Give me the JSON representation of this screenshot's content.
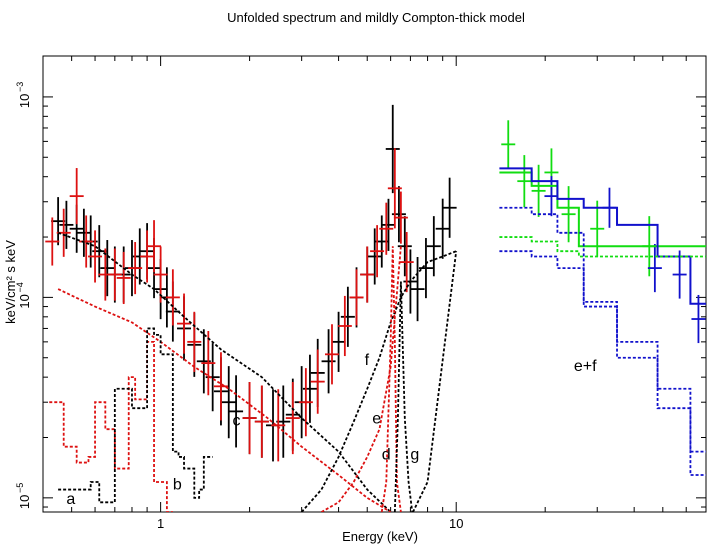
{
  "chart_data": {
    "type": "line",
    "title": "Unfolded spectrum and mildly Compton-thick model",
    "xlabel": "Energy (keV)",
    "ylabel": "keV/cm² s keV",
    "xscale": "log",
    "yscale": "log",
    "xlim": [
      0.4,
      70
    ],
    "ylim": [
      8.5e-06,
      0.0016
    ],
    "xticks": [
      {
        "value": 1,
        "label": "1"
      },
      {
        "value": 10,
        "label": "10"
      }
    ],
    "yticks": [
      {
        "value": 1e-05,
        "base": "10",
        "exp": "−5"
      },
      {
        "value": 0.0001,
        "base": "10",
        "exp": "−4"
      },
      {
        "value": 0.001,
        "base": "10",
        "exp": "−3"
      }
    ],
    "annotations": [
      {
        "text": "a",
        "x": 0.48,
        "y": 9.3e-06
      },
      {
        "text": "b",
        "x": 1.1,
        "y": 1.1e-05
      },
      {
        "text": "c",
        "x": 1.75,
        "y": 2.3e-05
      },
      {
        "text": "d",
        "x": 5.6,
        "y": 1.55e-05
      },
      {
        "text": "g",
        "x": 7.0,
        "y": 1.55e-05
      },
      {
        "text": "e",
        "x": 5.2,
        "y": 2.35e-05
      },
      {
        "text": "f",
        "x": 4.9,
        "y": 4.6e-05
      },
      {
        "text": "e+f",
        "x": 25,
        "y": 4.3e-05
      }
    ],
    "series": [
      {
        "name": "black-data",
        "color": "#000000",
        "style": "errorbar",
        "x": [
          0.45,
          0.48,
          0.52,
          0.55,
          0.58,
          0.62,
          0.66,
          0.7,
          0.75,
          0.8,
          0.85,
          0.9,
          0.95,
          1.0,
          1.05,
          1.1,
          1.2,
          1.3,
          1.4,
          1.5,
          1.6,
          1.7,
          1.8,
          2.0,
          2.2,
          2.4,
          2.6,
          2.8,
          3.0,
          3.2,
          3.4,
          3.7,
          4.0,
          4.3,
          4.6,
          5.0,
          5.3,
          5.6,
          5.9,
          6.1,
          6.4,
          6.7,
          7.0,
          7.4,
          7.9,
          8.4,
          9.0,
          9.5
        ],
        "y": [
          0.00024,
          0.00023,
          0.00022,
          0.00021,
          0.00019,
          0.00017,
          0.00014,
          0.00013,
          0.00013,
          0.00014,
          0.00016,
          0.00017,
          0.00014,
          0.00011,
          0.0001,
          8.5e-05,
          7e-05,
          5.8e-05,
          4.8e-05,
          4e-05,
          3.4e-05,
          3e-05,
          2.7e-05,
          2.5e-05,
          2.4e-05,
          2.3e-05,
          2.4e-05,
          2.6e-05,
          3e-05,
          3.5e-05,
          4.2e-05,
          4.8e-05,
          6e-05,
          8e-05,
          0.0001,
          0.00013,
          0.00016,
          0.00019,
          0.00023,
          0.00055,
          0.00026,
          0.00018,
          0.00012,
          0.00011,
          0.00014,
          0.00018,
          0.00022,
          0.00028
        ],
        "yerr": [
          0.12,
          0.12,
          0.12,
          0.12,
          0.13,
          0.13,
          0.14,
          0.14,
          0.14,
          0.14,
          0.14,
          0.14,
          0.15,
          0.15,
          0.15,
          0.15,
          0.16,
          0.16,
          0.16,
          0.17,
          0.17,
          0.18,
          0.18,
          0.18,
          0.18,
          0.18,
          0.18,
          0.18,
          0.18,
          0.17,
          0.17,
          0.16,
          0.15,
          0.15,
          0.15,
          0.14,
          0.14,
          0.13,
          0.13,
          0.22,
          0.14,
          0.15,
          0.16,
          0.16,
          0.15,
          0.15,
          0.15,
          0.15
        ]
      },
      {
        "name": "red-data",
        "color": "#dd1111",
        "style": "errorbar",
        "x": [
          0.43,
          0.47,
          0.52,
          0.56,
          0.6,
          0.65,
          0.7,
          0.75,
          0.82,
          0.9,
          0.95,
          1.0,
          1.1,
          1.2,
          1.3,
          1.45,
          1.6,
          2.0,
          2.2,
          2.5,
          2.8,
          3.1,
          3.4,
          3.8,
          4.2,
          4.6,
          5.0,
          5.4,
          5.8,
          6.2,
          6.5,
          6.8
        ],
        "y": [
          0.00019,
          0.00021,
          0.00032,
          0.00019,
          0.00016,
          0.00013,
          0.00013,
          0.000125,
          0.00014,
          0.00016,
          0.00018,
          0.00013,
          0.0001,
          7.4e-05,
          6e-05,
          4.7e-05,
          3.6e-05,
          2.5e-05,
          2.4e-05,
          2.3e-05,
          2.5e-05,
          3e-05,
          3.8e-05,
          5.2e-05,
          7.2e-05,
          0.0001,
          0.00013,
          0.00017,
          0.00022,
          0.00035,
          0.00025,
          0.00015
        ],
        "yerr": [
          0.12,
          0.12,
          0.14,
          0.13,
          0.13,
          0.13,
          0.13,
          0.13,
          0.13,
          0.13,
          0.13,
          0.14,
          0.14,
          0.15,
          0.15,
          0.16,
          0.17,
          0.18,
          0.18,
          0.18,
          0.18,
          0.17,
          0.16,
          0.15,
          0.15,
          0.14,
          0.14,
          0.13,
          0.13,
          0.2,
          0.13,
          0.15
        ]
      },
      {
        "name": "green-data",
        "color": "#11dd11",
        "style": "errorbar",
        "x": [
          15,
          17,
          19,
          21,
          24,
          30,
          45
        ],
        "y": [
          0.00058,
          0.00038,
          0.00034,
          0.00042,
          0.00026,
          0.00022,
          0.00018
        ],
        "yerr": [
          0.12,
          0.13,
          0.13,
          0.12,
          0.14,
          0.14,
          0.15
        ]
      },
      {
        "name": "blue-data",
        "color": "#1111cc",
        "style": "errorbar",
        "x": [
          21,
          33,
          47,
          57,
          66
        ],
        "y": [
          0.00032,
          0.00028,
          0.00014,
          0.00013,
          7.8e-05
        ],
        "yerr": [
          0.1,
          0.1,
          0.12,
          0.12,
          0.12
        ]
      },
      {
        "name": "green-model",
        "color": "#11dd11",
        "style": "step",
        "x": [
          14,
          18,
          22,
          26,
          70
        ],
        "y": [
          0.00042,
          0.00036,
          0.00028,
          0.00018,
          0.00018
        ]
      },
      {
        "name": "blue-model",
        "color": "#1111cc",
        "style": "step",
        "x": [
          14,
          18,
          22,
          27,
          35,
          48,
          62,
          70
        ],
        "y": [
          0.00044,
          0.00038,
          0.00031,
          0.00028,
          0.00023,
          0.00016,
          9.3e-05,
          9.3e-05
        ]
      },
      {
        "name": "green-model-dashed",
        "color": "#11dd11",
        "style": "dashstep",
        "x": [
          14,
          18,
          22,
          26,
          70
        ],
        "y": [
          0.0002,
          0.00019,
          0.00017,
          0.00016,
          0.00016
        ]
      },
      {
        "name": "blue-model-dashed",
        "color": "#1111cc",
        "style": "dashstep",
        "x": [
          14,
          18,
          22,
          27,
          35,
          48,
          62,
          70
        ],
        "y": [
          0.00028,
          0.00026,
          0.00021,
          9.5e-05,
          6e-05,
          3.5e-05,
          1.7e-05,
          1.7e-05
        ]
      },
      {
        "name": "blue-model-dotted",
        "color": "#1111cc",
        "style": "dashstep",
        "x": [
          14,
          18,
          22,
          27,
          35,
          48,
          62,
          70
        ],
        "y": [
          0.00017,
          0.00016,
          0.00014,
          9e-05,
          5e-05,
          2.8e-05,
          1.3e-05,
          1.3e-05
        ]
      },
      {
        "name": "black-component-a",
        "color": "#000000",
        "style": "dashline",
        "x": [
          0.45,
          0.6,
          0.8,
          0.95,
          1.2,
          1.6,
          2.2,
          3.0,
          4.0,
          5.0,
          6.0,
          7.0,
          8.0,
          10.0
        ],
        "y": [
          0.00021,
          0.00018,
          0.00013,
          0.00011,
          8e-05,
          5.5e-05,
          4e-05,
          2.5e-05,
          1.7e-05,
          1.1e-05,
          8.5e-06,
          8e-06,
          1.2e-05,
          0.00017
        ]
      },
      {
        "name": "red-component-c",
        "color": "#dd1111",
        "style": "dashline",
        "x": [
          0.45,
          0.6,
          0.8,
          1.0,
          1.3,
          1.7,
          2.3,
          3.0,
          4.0,
          5.0,
          6.0
        ],
        "y": [
          0.00011,
          9e-05,
          7.5e-05,
          6e-05,
          4.5e-05,
          3.5e-05,
          2.5e-05,
          1.8e-05,
          1.3e-05,
          1e-05,
          8.5e-06
        ]
      },
      {
        "name": "red-component-e",
        "color": "#dd1111",
        "style": "dashline",
        "x": [
          3.5,
          4.0,
          4.5,
          5.0,
          5.5,
          6.0,
          6.5
        ],
        "y": [
          8.5e-06,
          9.5e-06,
          1.2e-05,
          1.6e-05,
          2.2e-05,
          4.5e-05,
          0.00018
        ]
      },
      {
        "name": "black-component-f",
        "color": "#000000",
        "style": "dashline",
        "x": [
          3.0,
          3.5,
          4.0,
          4.5,
          5.0,
          5.5,
          6.0,
          6.5,
          7.0,
          8.0,
          9.0,
          10.0
        ],
        "y": [
          8.5e-06,
          1.1e-05,
          1.6e-05,
          2.4e-05,
          3.5e-05,
          5e-05,
          7.5e-05,
          0.0001,
          0.00012,
          0.00015,
          0.00016,
          0.00017
        ]
      },
      {
        "name": "red-lines-low",
        "color": "#dd1111",
        "style": "dashstep",
        "x": [
          0.42,
          0.47,
          0.52,
          0.57,
          0.6,
          0.65,
          0.7,
          0.78,
          0.82,
          0.9,
          0.95,
          1.05,
          1.1
        ],
        "y": [
          3e-05,
          1.8e-05,
          1.5e-05,
          1.6e-05,
          3e-05,
          2.2e-05,
          1.4e-05,
          4e-05,
          3.1e-05,
          6e-05,
          1.2e-05,
          8.5e-06,
          8.5e-06
        ]
      },
      {
        "name": "black-lines-low",
        "color": "#000000",
        "style": "dashstep",
        "x": [
          0.45,
          0.5,
          0.55,
          0.58,
          0.62,
          0.7,
          0.8,
          0.9,
          0.95,
          1.0,
          1.1,
          1.15,
          1.2,
          1.3,
          1.35,
          1.4,
          1.5
        ],
        "y": [
          1.1e-05,
          1.1e-05,
          1.1e-05,
          1.2e-05,
          9.5e-06,
          3.5e-05,
          2.8e-05,
          7e-05,
          6.5e-05,
          5.2e-05,
          1.7e-05,
          1.6e-05,
          1.4e-05,
          1e-05,
          1.1e-05,
          1.6e-05,
          8.5e-06
        ]
      },
      {
        "name": "red-line-d",
        "color": "#dd1111",
        "style": "dashline",
        "x": [
          5.6,
          5.8,
          6.0,
          6.1,
          6.2,
          6.3,
          6.5
        ],
        "y": [
          8.5e-06,
          1.2e-05,
          6e-05,
          0.00018,
          6e-05,
          1.2e-05,
          8.5e-06
        ]
      },
      {
        "name": "black-line-g",
        "color": "#000000",
        "style": "dashline",
        "x": [
          6.2,
          6.35,
          6.5,
          6.7,
          6.9,
          7.1
        ],
        "y": [
          8.5e-06,
          2.5e-05,
          0.00012,
          2.5e-05,
          1.2e-05,
          8.5e-06
        ]
      }
    ]
  }
}
